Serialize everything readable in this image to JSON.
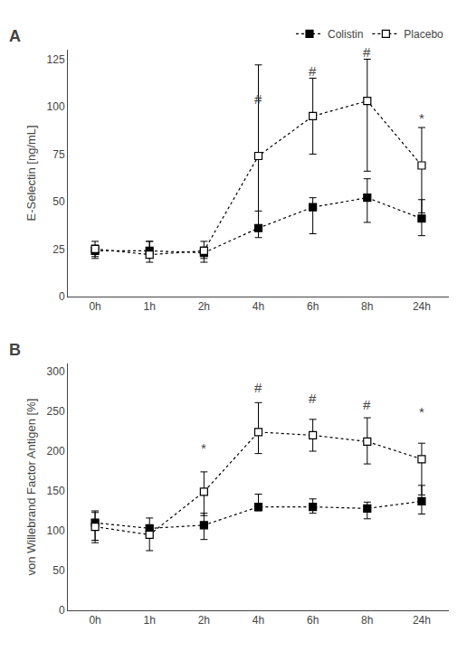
{
  "chart_data": [
    {
      "type": "line",
      "title": "A",
      "ylabel": "E-Selectin [ng/mL]",
      "categories": [
        "0h",
        "1h",
        "2h",
        "4h",
        "6h",
        "8h",
        "24h"
      ],
      "series": [
        {
          "name": "Colistin",
          "color": "black",
          "marker": "square",
          "line_style": "dotted",
          "values": [
            24,
            24,
            23,
            36,
            47,
            52,
            41
          ],
          "error_lo": [
            3,
            3,
            3,
            5,
            14,
            13,
            9
          ],
          "error_hi": [
            3,
            5,
            3,
            9,
            5,
            10,
            10
          ]
        },
        {
          "name": "Placebo",
          "color": "black",
          "marker": "square-open",
          "line_style": "dotted",
          "values": [
            25,
            22,
            24,
            74,
            95,
            103,
            69
          ],
          "error_lo": [
            5,
            4,
            6,
            37,
            20,
            37,
            25
          ],
          "error_hi": [
            4,
            7,
            5,
            48,
            20,
            22,
            20
          ]
        }
      ],
      "ylim": [
        0,
        130
      ],
      "yticks": [
        0,
        25,
        50,
        75,
        100,
        125
      ],
      "grid": false,
      "legend": "upper right",
      "annotations": [
        {
          "x": "4h",
          "y": 99,
          "text": "#"
        },
        {
          "x": "6h",
          "y": 114,
          "text": "#"
        },
        {
          "x": "8h",
          "y": 124,
          "text": "#"
        },
        {
          "x": "24h",
          "y": 89,
          "text": "*"
        }
      ]
    },
    {
      "type": "line",
      "title": "B",
      "ylabel": "von Willebrand Factor Antigen [%]",
      "categories": [
        "0h",
        "1h",
        "2h",
        "4h",
        "6h",
        "8h",
        "24h"
      ],
      "series": [
        {
          "name": "Colistin",
          "color": "black",
          "marker": "square",
          "line_style": "dotted",
          "values": [
            110,
            103,
            107,
            130,
            130,
            128,
            137
          ],
          "error_lo": [
            22,
            12,
            18,
            5,
            8,
            13,
            16
          ],
          "error_hi": [
            15,
            13,
            15,
            16,
            10,
            8,
            20
          ]
        },
        {
          "name": "Placebo",
          "color": "black",
          "marker": "square-open",
          "line_style": "dotted",
          "values": [
            105,
            95,
            149,
            224,
            220,
            212,
            190
          ],
          "error_lo": [
            20,
            20,
            30,
            27,
            20,
            28,
            45
          ],
          "error_hi": [
            18,
            10,
            25,
            37,
            20,
            30,
            20
          ]
        }
      ],
      "ylim": [
        0,
        310
      ],
      "yticks": [
        0,
        50,
        100,
        150,
        200,
        250,
        300
      ],
      "grid": false,
      "legend": false,
      "annotations": [
        {
          "x": "4h",
          "y": 268,
          "text": "#"
        },
        {
          "x": "6h",
          "y": 254,
          "text": "#"
        },
        {
          "x": "8h",
          "y": 247,
          "text": "#"
        },
        {
          "x": "2h",
          "y": 192,
          "text": "*"
        },
        {
          "x": "24h",
          "y": 238,
          "text": "*"
        }
      ]
    }
  ]
}
